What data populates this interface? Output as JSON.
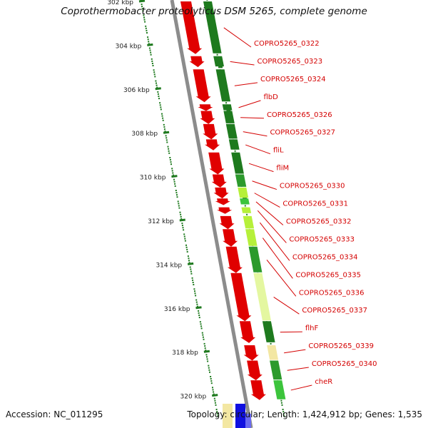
{
  "title": "Coprothermobacter proteolyticus DSM 5265, complete genome",
  "footer": {
    "accession": "Accession: NC_011295",
    "topology": "Topology: circular; Length: 1,424,912 bp; Genes: 1,535"
  },
  "scale": {
    "unit": "kbp",
    "ticks": [
      302,
      304,
      306,
      308,
      310,
      312,
      314,
      316,
      318,
      320
    ]
  },
  "colors": {
    "tick": "#1f7a1f",
    "label": "#d40000",
    "backbone": "#8c8c8c",
    "forward_gene": "#e00000",
    "shades": [
      "#1e7a1e",
      "#2c9a2c",
      "#3cc43c",
      "#b6f03a",
      "#e4f7a0",
      "#f3e7a2"
    ]
  },
  "genes": [
    {
      "label": "COPRO5265_0322",
      "start": 302.0,
      "end": 304.4,
      "strand": "+",
      "shade": 0
    },
    {
      "label": "COPRO5265_0323",
      "start": 304.5,
      "end": 305.0,
      "strand": "+",
      "shade": 0
    },
    {
      "label": "COPRO5265_0324",
      "start": 305.1,
      "end": 306.6,
      "strand": "+",
      "shade": 0
    },
    {
      "label": "flbD",
      "start": 306.7,
      "end": 307.0,
      "strand": "+",
      "shade": 0
    },
    {
      "label": "COPRO5265_0326",
      "start": 307.0,
      "end": 307.6,
      "strand": "+",
      "shade": 0
    },
    {
      "label": "COPRO5265_0327",
      "start": 307.6,
      "end": 308.3,
      "strand": "+",
      "shade": 0
    },
    {
      "label": "fliL",
      "start": 308.3,
      "end": 308.8,
      "strand": "+",
      "shade": 0
    },
    {
      "label": "fliM",
      "start": 308.9,
      "end": 309.9,
      "strand": "+",
      "shade": 0
    },
    {
      "label": "COPRO5265_0330",
      "start": 309.9,
      "end": 310.5,
      "strand": "+",
      "shade": 1
    },
    {
      "label": "COPRO5265_0331",
      "start": 310.5,
      "end": 311.0,
      "strand": "+",
      "shade": 3
    },
    {
      "label": "COPRO5265_0332",
      "start": 311.0,
      "end": 311.3,
      "strand": "+",
      "shade": 2
    },
    {
      "label": "COPRO5265_0333",
      "start": 311.4,
      "end": 311.7,
      "strand": "+",
      "shade": 3
    },
    {
      "label": "COPRO5265_0334",
      "start": 311.8,
      "end": 312.4,
      "strand": "+",
      "shade": 3
    },
    {
      "label": "COPRO5265_0335",
      "start": 312.4,
      "end": 313.2,
      "strand": "+",
      "shade": 3
    },
    {
      "label": "COPRO5265_0336",
      "start": 313.2,
      "end": 314.4,
      "strand": "+",
      "shade": 1
    },
    {
      "label": "COPRO5265_0337",
      "start": 314.4,
      "end": 316.6,
      "strand": "+",
      "shade": 4
    },
    {
      "label": "flhF",
      "start": 316.6,
      "end": 317.6,
      "strand": "+",
      "shade": 0
    },
    {
      "label": "COPRO5265_0339",
      "start": 317.7,
      "end": 318.4,
      "strand": "+",
      "shade": 5
    },
    {
      "label": "COPRO5265_0340",
      "start": 318.4,
      "end": 319.3,
      "strand": "+",
      "shade": 1
    },
    {
      "label": "cheR",
      "start": 319.3,
      "end": 320.2,
      "strand": "+",
      "shade": 2
    }
  ]
}
